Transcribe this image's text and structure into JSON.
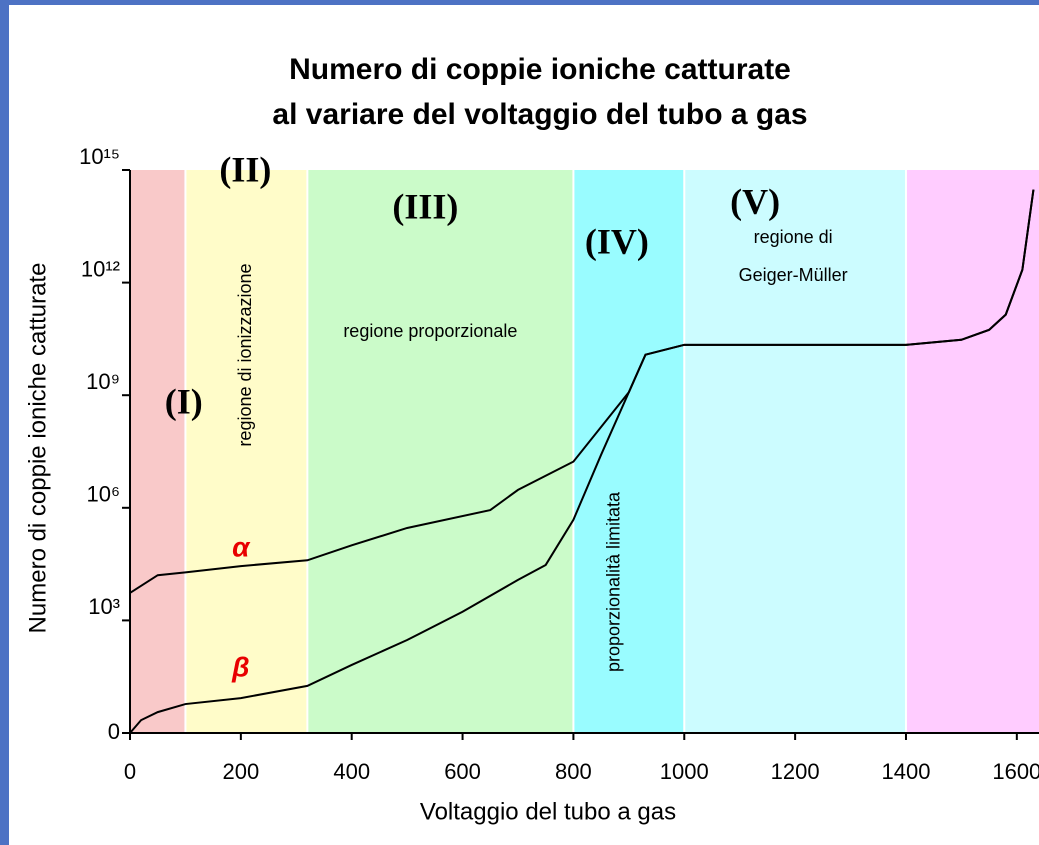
{
  "chart_data": {
    "type": "line",
    "title": [
      "Numero di coppie ioniche catturate",
      "al variare del voltaggio del tubo a gas"
    ],
    "xlabel": "Voltaggio del tubo a gas",
    "ylabel": "Numero di coppie ioniche catturate",
    "xlim": [
      0,
      1640
    ],
    "xticks": [
      0,
      200,
      400,
      600,
      800,
      1000,
      1200,
      1400,
      1600
    ],
    "ylim": [
      1,
      1000000000000000
    ],
    "log_y": true,
    "yticks": [
      {
        "value": 1,
        "label": "0"
      },
      {
        "value": 1000,
        "label": "10³"
      },
      {
        "value": 1000000,
        "label": "10⁶"
      },
      {
        "value": 1000000000,
        "label": "10⁹"
      },
      {
        "value": 1000000000000,
        "label": "10¹²"
      },
      {
        "value": 1000000000000000,
        "label": "10¹⁵"
      }
    ],
    "regions": [
      {
        "start": 0,
        "end": 100,
        "color": "#f9c9c9",
        "label": "(I)"
      },
      {
        "start": 100,
        "end": 320,
        "color": "#fffcc9",
        "label": "(II)",
        "text": [
          "regione di ionizzazione"
        ]
      },
      {
        "start": 320,
        "end": 800,
        "color": "#cbfbc9",
        "label": "(III)",
        "text": [
          "regione proporzionale"
        ]
      },
      {
        "start": 800,
        "end": 1000,
        "color": "#99fcff",
        "label": "(IV)",
        "text": [
          "proporzionalità limitata"
        ]
      },
      {
        "start": 1000,
        "end": 1400,
        "color": "#ccfcff",
        "label": "(V)",
        "text": [
          "regione di",
          "Geiger-Müller"
        ]
      },
      {
        "start": 1400,
        "end": 1640,
        "color": "#ffccff"
      }
    ],
    "series": [
      {
        "name": "α",
        "color": "#000000",
        "label_color": "#e80000",
        "x": [
          0,
          50,
          100,
          200,
          320,
          400,
          500,
          650,
          700,
          800,
          900,
          930,
          1000,
          1400,
          1500,
          1550,
          1580,
          1610,
          1630
        ],
        "values": [
          5400,
          16000,
          19000,
          28000,
          40000,
          100000,
          290000,
          870000,
          3000000,
          17000000,
          1200000000,
          12000000000,
          22000000000,
          22000000000,
          30000000000,
          55000000000,
          140000000000,
          2200000000000,
          300000000000000
        ]
      },
      {
        "name": "β",
        "color": "#000000",
        "label_color": "#e80000",
        "x": [
          0,
          20,
          50,
          100,
          200,
          320,
          400,
          500,
          600,
          700,
          750,
          800,
          850,
          900,
          930,
          1000,
          1400,
          1500,
          1550,
          1580,
          1610,
          1630
        ],
        "values": [
          1,
          2.2,
          3.6,
          5.9,
          8.5,
          18,
          65,
          300,
          1700,
          12000,
          30000,
          480000,
          26000000,
          1200000000,
          12000000000,
          22000000000,
          22000000000,
          30000000000,
          55000000000,
          140000000000,
          2200000000000,
          300000000000000
        ]
      }
    ]
  }
}
